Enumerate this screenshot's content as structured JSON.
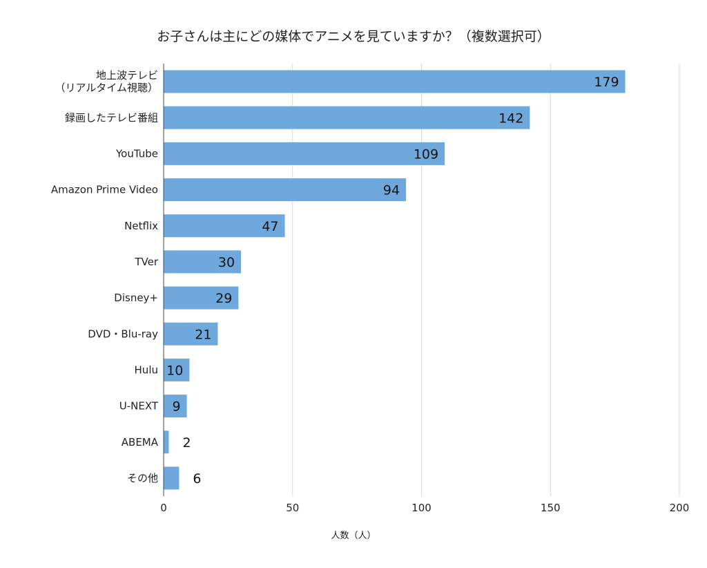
{
  "chart_data": {
    "type": "bar",
    "orientation": "horizontal",
    "title": "お子さんは主にどの媒体でアニメを見ていますか？（複数選択可）",
    "xlabel": "人数（人）",
    "ylabel": "",
    "categories": [
      [
        "地上波テレビ",
        "（リアルタイム視聴）"
      ],
      [
        "録画したテレビ番組"
      ],
      [
        "YouTube"
      ],
      [
        "Amazon Prime Video"
      ],
      [
        "Netflix"
      ],
      [
        "TVer"
      ],
      [
        "Disney+"
      ],
      [
        "DVD・Blu-ray"
      ],
      [
        "Hulu"
      ],
      [
        "U-NEXT"
      ],
      [
        "ABEMA"
      ],
      [
        "その他"
      ]
    ],
    "values": [
      179,
      142,
      109,
      94,
      47,
      30,
      29,
      21,
      10,
      9,
      2,
      6
    ],
    "xlim": [
      0,
      200
    ],
    "xticks": [
      0,
      50,
      100,
      150,
      200
    ],
    "grid": true,
    "bar_color": "#6fa8dc"
  }
}
